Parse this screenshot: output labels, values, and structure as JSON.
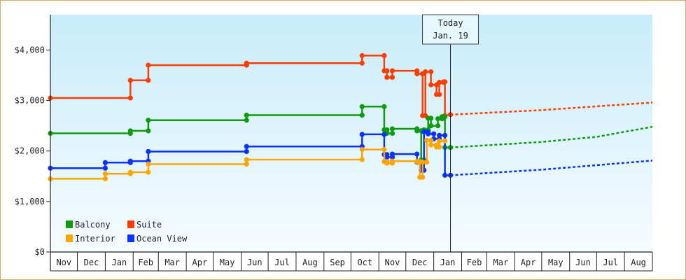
{
  "chart_data": {
    "type": "line",
    "title": "",
    "xlabel": "",
    "ylabel": "",
    "ylim": [
      0,
      4700
    ],
    "y_ticks": [
      {
        "value": 0,
        "label": "$0"
      },
      {
        "value": 1000,
        "label": "$1,000"
      },
      {
        "value": 2000,
        "label": "$2,000"
      },
      {
        "value": 3000,
        "label": "$3,000"
      },
      {
        "value": 4000,
        "label": "$4,000"
      }
    ],
    "months": [
      "Nov",
      "Dec",
      "Jan",
      "Feb",
      "Mar",
      "Apr",
      "May",
      "Jun",
      "Jul",
      "Aug",
      "Sep",
      "Oct",
      "Nov",
      "Dec",
      "Jan",
      "Feb",
      "Mar",
      "Apr",
      "May",
      "Jun",
      "Jul",
      "Aug"
    ],
    "month_days": [
      30,
      31,
      31,
      28,
      31,
      30,
      31,
      30,
      31,
      31,
      30,
      31,
      30,
      31,
      31,
      28,
      31,
      30,
      31,
      30,
      31,
      31
    ],
    "today": {
      "label_line1": "Today",
      "label_line2": "Jan. 19",
      "x": 14.6
    },
    "background": {
      "top": "#c8ecfa",
      "bottom": "#f6fcff"
    },
    "legend": {
      "position": "bottom-left",
      "items": [
        {
          "name": "Balcony",
          "color": "#0e9b0e"
        },
        {
          "name": "Suite",
          "color": "#ff3c00"
        },
        {
          "name": "Interior",
          "color": "#ffa500"
        },
        {
          "name": "Ocean View",
          "color": "#0a32ff"
        }
      ]
    },
    "series": [
      {
        "name": "Suite",
        "color": "#ff3c00",
        "points": [
          [
            0.0,
            3050
          ],
          [
            2.9,
            3050
          ],
          [
            2.9,
            3400
          ],
          [
            3.6,
            3400
          ],
          [
            3.6,
            3700
          ],
          [
            7.2,
            3700
          ],
          [
            7.2,
            3740
          ],
          [
            11.4,
            3740
          ],
          [
            11.4,
            3890
          ],
          [
            12.2,
            3890
          ],
          [
            12.2,
            3590
          ],
          [
            12.3,
            3590
          ],
          [
            12.3,
            3460
          ],
          [
            12.5,
            3460
          ],
          [
            12.5,
            3590
          ],
          [
            13.4,
            3590
          ],
          [
            13.4,
            3530
          ],
          [
            13.6,
            3530
          ],
          [
            13.6,
            2700
          ],
          [
            13.7,
            2700
          ],
          [
            13.7,
            3570
          ],
          [
            13.9,
            3570
          ],
          [
            13.9,
            3310
          ],
          [
            14.1,
            3310
          ],
          [
            14.1,
            3120
          ],
          [
            14.2,
            3120
          ],
          [
            14.2,
            3360
          ],
          [
            14.35,
            3360
          ],
          [
            14.35,
            3370
          ],
          [
            14.4,
            3370
          ],
          [
            14.4,
            2700
          ],
          [
            14.6,
            2720
          ]
        ],
        "forecast": [
          [
            14.6,
            2720
          ],
          [
            18.0,
            2810
          ],
          [
            22.0,
            2960
          ]
        ]
      },
      {
        "name": "Balcony",
        "color": "#0e9b0e",
        "points": [
          [
            0.0,
            2350
          ],
          [
            2.9,
            2350
          ],
          [
            2.9,
            2400
          ],
          [
            3.6,
            2400
          ],
          [
            3.6,
            2610
          ],
          [
            7.2,
            2610
          ],
          [
            7.2,
            2710
          ],
          [
            11.4,
            2710
          ],
          [
            11.4,
            2880
          ],
          [
            12.2,
            2880
          ],
          [
            12.2,
            2420
          ],
          [
            12.3,
            2420
          ],
          [
            12.3,
            2350
          ],
          [
            12.5,
            2350
          ],
          [
            12.5,
            2440
          ],
          [
            13.4,
            2440
          ],
          [
            13.4,
            2400
          ],
          [
            13.55,
            2400
          ],
          [
            13.55,
            1820
          ],
          [
            13.65,
            1820
          ],
          [
            13.65,
            2420
          ],
          [
            13.8,
            2420
          ],
          [
            13.8,
            2650
          ],
          [
            13.9,
            2650
          ],
          [
            13.9,
            2500
          ],
          [
            14.15,
            2500
          ],
          [
            14.15,
            2640
          ],
          [
            14.3,
            2640
          ],
          [
            14.3,
            2680
          ],
          [
            14.4,
            2680
          ],
          [
            14.4,
            2070
          ],
          [
            14.6,
            2070
          ]
        ],
        "forecast": [
          [
            14.6,
            2070
          ],
          [
            18.0,
            2180
          ],
          [
            20.0,
            2280
          ],
          [
            22.0,
            2480
          ]
        ]
      },
      {
        "name": "Ocean View",
        "color": "#0a32ff",
        "points": [
          [
            0.0,
            1660
          ],
          [
            2.0,
            1660
          ],
          [
            2.0,
            1770
          ],
          [
            2.9,
            1770
          ],
          [
            2.9,
            1800
          ],
          [
            3.6,
            1800
          ],
          [
            3.6,
            1990
          ],
          [
            7.2,
            1990
          ],
          [
            7.2,
            2090
          ],
          [
            11.4,
            2090
          ],
          [
            11.4,
            2330
          ],
          [
            12.2,
            2330
          ],
          [
            12.2,
            1930
          ],
          [
            12.3,
            1930
          ],
          [
            12.3,
            1880
          ],
          [
            12.5,
            1880
          ],
          [
            12.5,
            1940
          ],
          [
            13.4,
            1940
          ],
          [
            13.4,
            1780
          ],
          [
            13.55,
            1780
          ],
          [
            13.55,
            1620
          ],
          [
            13.65,
            1620
          ],
          [
            13.65,
            2380
          ],
          [
            13.8,
            2380
          ],
          [
            13.8,
            2340
          ],
          [
            14.0,
            2340
          ],
          [
            14.0,
            2240
          ],
          [
            14.2,
            2240
          ],
          [
            14.2,
            2310
          ],
          [
            14.4,
            2310
          ],
          [
            14.4,
            1520
          ],
          [
            14.6,
            1520
          ]
        ],
        "forecast": [
          [
            14.6,
            1520
          ],
          [
            18.0,
            1630
          ],
          [
            22.0,
            1810
          ]
        ]
      },
      {
        "name": "Interior",
        "color": "#ffa500",
        "points": [
          [
            0.0,
            1450
          ],
          [
            2.0,
            1450
          ],
          [
            2.0,
            1550
          ],
          [
            2.9,
            1550
          ],
          [
            2.9,
            1580
          ],
          [
            3.6,
            1580
          ],
          [
            3.6,
            1740
          ],
          [
            7.2,
            1740
          ],
          [
            7.2,
            1830
          ],
          [
            11.4,
            1830
          ],
          [
            11.4,
            2030
          ],
          [
            12.2,
            2030
          ],
          [
            12.2,
            1790
          ],
          [
            12.3,
            1790
          ],
          [
            12.3,
            1760
          ],
          [
            12.5,
            1760
          ],
          [
            12.5,
            1800
          ],
          [
            13.4,
            1800
          ],
          [
            13.4,
            1790
          ],
          [
            13.5,
            1790
          ],
          [
            13.5,
            1480
          ],
          [
            13.6,
            1480
          ],
          [
            13.6,
            1780
          ],
          [
            13.75,
            1780
          ],
          [
            13.75,
            2210
          ],
          [
            13.9,
            2210
          ],
          [
            13.9,
            2120
          ],
          [
            14.1,
            2120
          ],
          [
            14.1,
            2080
          ],
          [
            14.2,
            2080
          ],
          [
            14.2,
            2200
          ],
          [
            14.4,
            2200
          ]
        ],
        "forecast": []
      }
    ]
  }
}
